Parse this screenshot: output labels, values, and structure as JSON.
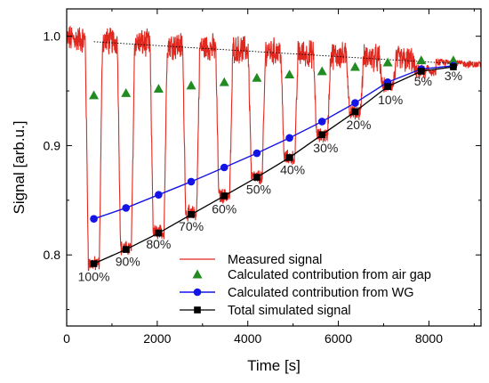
{
  "chart_data": {
    "type": "line",
    "title": "",
    "xlabel": "Time [s]",
    "ylabel": "Signal [arb.u.]",
    "xlim": [
      0,
      9150
    ],
    "ylim": [
      0.735,
      1.025
    ],
    "xticks": [
      0,
      2000,
      4000,
      6000,
      8000
    ],
    "yticks": [
      0.8,
      0.9,
      1.0
    ],
    "ytick_labels": [
      "0.8",
      "0.9",
      "1.0"
    ],
    "grid": false,
    "legend_position": "bottom-right",
    "colors": {
      "measured": "#e0281e",
      "air_gap": "#228b22",
      "wg": "#1414e6",
      "total": "#000000",
      "baseline": "#000000"
    },
    "series": [
      {
        "name": "Measured signal",
        "kind": "oscillating-trace",
        "high_level": {
          "x": [
            0,
            9100
          ],
          "y": [
            0.998,
            0.974
          ]
        },
        "dip_times": [
          600,
          1310,
          2030,
          2750,
          3480,
          4200,
          4920,
          5640,
          6370,
          7090,
          7830,
          8540
        ],
        "dip_minima": [
          0.792,
          0.806,
          0.821,
          0.838,
          0.854,
          0.871,
          0.889,
          0.909,
          0.931,
          0.955,
          0.967,
          0.97
        ]
      },
      {
        "name": "Calculated contribution from air gap",
        "marker": "triangle",
        "x": [
          600,
          1310,
          2030,
          2750,
          3480,
          4200,
          4920,
          5640,
          6370,
          7090,
          7830,
          8540
        ],
        "y": [
          0.946,
          0.948,
          0.952,
          0.955,
          0.958,
          0.962,
          0.965,
          0.968,
          0.972,
          0.976,
          0.978,
          0.978
        ]
      },
      {
        "name": "Calculated contribution from WG",
        "marker": "circle",
        "x": [
          600,
          1310,
          2030,
          2750,
          3480,
          4200,
          4920,
          5640,
          6370,
          7090,
          7830,
          8540
        ],
        "y": [
          0.833,
          0.843,
          0.855,
          0.867,
          0.88,
          0.893,
          0.907,
          0.922,
          0.939,
          0.958,
          0.97,
          0.973
        ]
      },
      {
        "name": "Total simulated signal",
        "marker": "square",
        "x": [
          600,
          1310,
          2030,
          2750,
          3480,
          4200,
          4920,
          5640,
          6370,
          7090,
          7830,
          8540
        ],
        "y": [
          0.792,
          0.805,
          0.82,
          0.837,
          0.854,
          0.871,
          0.889,
          0.91,
          0.931,
          0.954,
          0.968,
          0.972
        ]
      }
    ],
    "baseline_trend": {
      "x": [
        600,
        8540
      ],
      "y": [
        0.995,
        0.975
      ]
    },
    "annotations": [
      {
        "text": "100%",
        "x": 600,
        "y": 0.776
      },
      {
        "text": "90%",
        "x": 1350,
        "y": 0.79
      },
      {
        "text": "80%",
        "x": 2030,
        "y": 0.806
      },
      {
        "text": "70%",
        "x": 2750,
        "y": 0.822
      },
      {
        "text": "60%",
        "x": 3480,
        "y": 0.838
      },
      {
        "text": "50%",
        "x": 4240,
        "y": 0.856
      },
      {
        "text": "40%",
        "x": 4990,
        "y": 0.874
      },
      {
        "text": "30%",
        "x": 5720,
        "y": 0.894
      },
      {
        "text": "20%",
        "x": 6450,
        "y": 0.915
      },
      {
        "text": "10%",
        "x": 7150,
        "y": 0.938
      },
      {
        "text": "5%",
        "x": 7870,
        "y": 0.955
      },
      {
        "text": "3%",
        "x": 8540,
        "y": 0.96
      }
    ]
  }
}
